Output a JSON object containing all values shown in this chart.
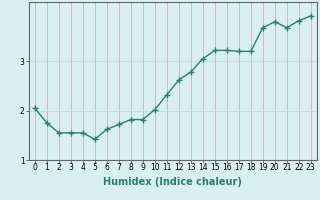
{
  "x": [
    0,
    1,
    2,
    3,
    4,
    5,
    6,
    7,
    8,
    9,
    10,
    11,
    12,
    13,
    14,
    15,
    16,
    17,
    18,
    19,
    20,
    21,
    22,
    23
  ],
  "y": [
    2.05,
    1.75,
    1.55,
    1.55,
    1.55,
    1.42,
    1.62,
    1.72,
    1.82,
    1.82,
    2.02,
    2.32,
    2.62,
    2.78,
    3.05,
    3.22,
    3.22,
    3.2,
    3.2,
    3.68,
    3.8,
    3.68,
    3.82,
    3.92
  ],
  "line_color": "#2e7d6e",
  "marker": "+",
  "marker_size": 4,
  "bg_color": "#d8f0f0",
  "grid_color": "#b8d8d8",
  "xlabel": "Humidex (Indice chaleur)",
  "xlabel_fontsize": 7,
  "xlim": [
    -0.5,
    23.5
  ],
  "ylim": [
    1.0,
    4.2
  ],
  "yticks": [
    1,
    2,
    3
  ],
  "xticks": [
    0,
    1,
    2,
    3,
    4,
    5,
    6,
    7,
    8,
    9,
    10,
    11,
    12,
    13,
    14,
    15,
    16,
    17,
    18,
    19,
    20,
    21,
    22,
    23
  ],
  "tick_fontsize": 5.5,
  "line_width": 1.0
}
